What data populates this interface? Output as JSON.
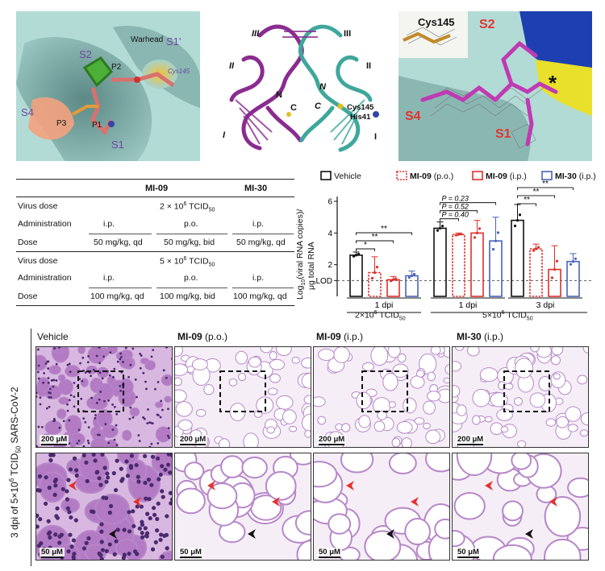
{
  "top_panels": {
    "left": {
      "labels": [
        "S1'",
        "S2",
        "P2",
        "Warhead",
        "Cys145",
        "S4",
        "P3",
        "P1",
        "S1"
      ]
    },
    "middle": {
      "labels": [
        "III",
        "III",
        "II",
        "II",
        "N",
        "N",
        "C",
        "C",
        "Cys145",
        "His41",
        "I",
        "I"
      ]
    },
    "right": {
      "labels": [
        "Cys145",
        "S2",
        "S4",
        "S1",
        "*"
      ]
    }
  },
  "table": {
    "header": [
      "MI-09",
      "MI-30"
    ],
    "rows": [
      {
        "label": "Virus dose",
        "cells": [
          "2 × 10",
          "6",
          " TCID",
          "50"
        ]
      },
      {
        "label": "Administration",
        "cells": [
          "i.p.",
          "p.o.",
          "i.p."
        ]
      },
      {
        "label": "Dose",
        "cells": [
          "50 mg/kg, qd",
          "50 mg/kg, bid",
          "50 mg/kg, qd"
        ]
      },
      {
        "label": "Virus dose",
        "cells": [
          "5 × 10",
          "6",
          " TCID",
          "50"
        ]
      },
      {
        "label": "Administration",
        "cells": [
          "i.p.",
          "p.o.",
          "i.p."
        ]
      },
      {
        "label": "Dose",
        "cells": [
          "100 mg/kg, qd",
          "100 mg/kg, bid",
          "100 mg/kg, qd"
        ]
      }
    ]
  },
  "chart_data": {
    "type": "bar",
    "ylabel_parts": [
      "Log",
      "10",
      "(viral RNA copies)/",
      "μg total RNA"
    ],
    "yticks": [
      "LOD",
      "2",
      "4",
      "6"
    ],
    "lod_value": 1.0,
    "ylim": [
      0,
      6
    ],
    "groups": [
      "1 dpi",
      "1 dpi",
      "3 dpi"
    ],
    "group_sub_labels": [
      "2×10",
      "6",
      " TCID",
      "50",
      "5×10",
      "6",
      " TCID",
      "50"
    ],
    "series": [
      {
        "name": "Vehicle",
        "label_suffix": "",
        "color": "#111111",
        "dashed": false,
        "values": [
          2.6,
          4.3,
          4.8
        ],
        "err": [
          0.2,
          0.4,
          1.0
        ]
      },
      {
        "name": "MI-09",
        "label_suffix": " (p.o.)",
        "color": "#e0302a",
        "dashed": true,
        "values": [
          1.5,
          3.9,
          3.0
        ],
        "err": [
          1.0,
          0.1,
          0.3
        ]
      },
      {
        "name": "MI-09",
        "label_suffix": " (i.p.)",
        "color": "#e0302a",
        "dashed": false,
        "values": [
          1.05,
          4.0,
          1.7
        ],
        "err": [
          0.2,
          0.8,
          1.5
        ]
      },
      {
        "name": "MI-30",
        "label_suffix": " (i.p.)",
        "color": "#4a63b8",
        "dashed": false,
        "values": [
          1.3,
          3.5,
          2.2
        ],
        "err": [
          0.3,
          1.5,
          0.5
        ]
      }
    ],
    "significance": [
      {
        "group": 0,
        "to": 1,
        "text": "*"
      },
      {
        "group": 0,
        "to": 2,
        "text": "**"
      },
      {
        "group": 0,
        "to": 3,
        "text": "**"
      },
      {
        "group": 1,
        "to": 1,
        "text": "P = 0.40"
      },
      {
        "group": 1,
        "to": 2,
        "text": "P = 0.52"
      },
      {
        "group": 1,
        "to": 3,
        "text": "P = 0.23"
      },
      {
        "group": 2,
        "to": 1,
        "text": "**"
      },
      {
        "group": 2,
        "to": 2,
        "text": "**"
      },
      {
        "group": 2,
        "to": 3,
        "text": "**"
      }
    ]
  },
  "histology": {
    "side_label_parts": [
      "3 dpi of 5×10",
      "6",
      " TCID",
      "50",
      " SARS-CoV-2"
    ],
    "columns": [
      {
        "name": "Vehicle",
        "suffix": ""
      },
      {
        "name": "MI-09",
        "suffix": " (p.o.)"
      },
      {
        "name": "MI-09",
        "suffix": " (i.p.)"
      },
      {
        "name": "MI-30",
        "suffix": " (i.p.)"
      }
    ],
    "scale_top": "200 μM",
    "scale_bottom": "50 μM"
  },
  "colors": {
    "surface": "#a9d3cf",
    "pocket": "#5f8f8c",
    "tissue": "#b787c9",
    "tissue_bg": "#f6eef7",
    "arrow_red": "#e3342f",
    "arrow_black": "#111111"
  }
}
